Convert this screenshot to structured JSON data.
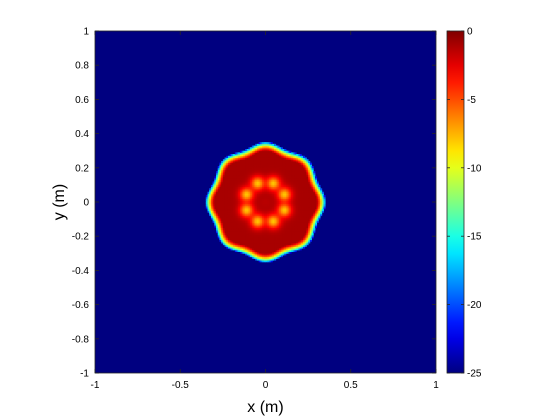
{
  "chart_data": {
    "type": "heatmap",
    "title": "",
    "xlabel": "x (m)",
    "ylabel": "y (m)",
    "xlim": [
      -1,
      1
    ],
    "ylim": [
      -1,
      1
    ],
    "xticks": [
      -1,
      -0.5,
      0,
      0.5,
      1
    ],
    "xtick_labels": [
      "-1",
      "-0.5",
      "0",
      "0.5",
      "1"
    ],
    "yticks": [
      1,
      0.8,
      0.6,
      0.4,
      0.2,
      0,
      -0.2,
      -0.4,
      -0.6,
      -0.8,
      -1
    ],
    "ytick_labels": [
      "1",
      "0.8",
      "0.6",
      "0.4",
      "0.2",
      "0",
      "-0.2",
      "-0.4",
      "-0.6",
      "-0.8",
      "-1"
    ],
    "grid": false,
    "colormap": "jet",
    "colorbar": {
      "clim": [
        -25,
        0
      ],
      "ticks": [
        0,
        -5,
        -10,
        -15,
        -20,
        -25
      ],
      "tick_labels": [
        "0",
        "-5",
        "-10",
        "-15",
        "-20",
        "-25"
      ]
    },
    "field": {
      "description_values": "circular region of high values centered at origin",
      "center": [
        0,
        0
      ],
      "radius_m": 0.34,
      "background_value": -25,
      "disk_peak_value": -1,
      "spoke_count": 8,
      "spoke_value": -8,
      "spoke_radius_m": 0.12,
      "center_value": -2
    }
  }
}
